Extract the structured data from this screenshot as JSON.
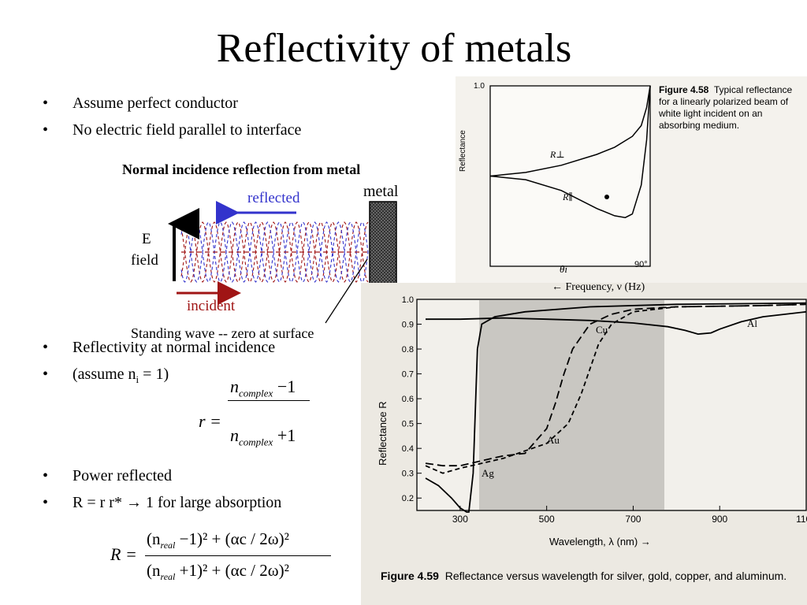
{
  "slide": {
    "title": "Reflectivity of metals",
    "bullets_top": [
      "Assume perfect conductor",
      "No electric field parallel to interface"
    ],
    "bullets_mid": [
      "Reflectivity at normal incidence"
    ],
    "assume_prefix": "(assume n",
    "assume_sub": "i",
    "assume_suffix": " = 1)",
    "bullets_bottom": [
      "Power reflected",
      "R = r r* → 1 for large absorption"
    ]
  },
  "diagram": {
    "heading": "Normal incidence reflection from metal",
    "metal_label": "metal",
    "reflected_label": "reflected",
    "incident_label": "incident",
    "e_field_label_1": "E",
    "e_field_label_2": "field",
    "caption": "Standing wave -- zero at surface"
  },
  "equations": {
    "r_lhs": "r =",
    "r_num": "n",
    "r_num_sub": "complex",
    "r_num_tail": " −1",
    "r_den": "n",
    "r_den_sub": "complex",
    "r_den_tail": " +1",
    "R_lhs": "R =",
    "R_num_open": "(n",
    "R_num_sub": "real",
    "R_num_close": " −1)² + (αc / 2ω)²",
    "R_den_open": "(n",
    "R_den_sub": "real",
    "R_den_close": " +1)² + (αc / 2ω)²"
  },
  "figure_458": {
    "caption_bold": "Figure 4.58",
    "caption_text": "Typical reflectance for a linearly polarized beam of white light incident on an absorbing medium.",
    "y_axis_label": "Reflectance",
    "y_tick": "1.0",
    "x_axis_label": "θi",
    "x_tick": "90°",
    "curve_perp_label": "R⊥",
    "curve_par_label": "R∥",
    "frequency_label": "← Frequency, ν (Hz)"
  },
  "figure_459": {
    "caption_bold": "Figure 4.59",
    "caption_text": "Reflectance versus wavelength for silver, gold, copper, and aluminum."
  },
  "chart_data": [
    {
      "type": "line",
      "title": "",
      "xlabel": "θi",
      "ylabel": "Reflectance",
      "xlim": [
        0,
        90
      ],
      "ylim": [
        0,
        1
      ],
      "x_ticks": [
        "90°"
      ],
      "y_ticks": [
        "1.0"
      ],
      "series": [
        {
          "name": "R⊥",
          "x": [
            0,
            20,
            40,
            60,
            70,
            80,
            85,
            88,
            90
          ],
          "y": [
            0.5,
            0.52,
            0.56,
            0.62,
            0.66,
            0.72,
            0.78,
            0.88,
            1.0
          ]
        },
        {
          "name": "R∥",
          "x": [
            0,
            20,
            40,
            60,
            70,
            76,
            80,
            85,
            88,
            90
          ],
          "y": [
            0.5,
            0.48,
            0.42,
            0.32,
            0.28,
            0.27,
            0.29,
            0.45,
            0.7,
            1.0
          ]
        }
      ]
    },
    {
      "type": "line",
      "title": "",
      "xlabel": "Wavelength, λ (nm) →",
      "ylabel": "Reflectance R",
      "xlim": [
        200,
        1100
      ],
      "ylim": [
        0.15,
        1.0
      ],
      "x_ticks": [
        300,
        500,
        700,
        900,
        1100
      ],
      "y_ticks": [
        0.2,
        0.3,
        0.4,
        0.5,
        0.6,
        0.7,
        0.8,
        0.9,
        1.0
      ],
      "series": [
        {
          "name": "Al",
          "style": "solid",
          "x": [
            220,
            260,
            300,
            400,
            500,
            600,
            700,
            780,
            820,
            850,
            880,
            900,
            950,
            1000,
            1100
          ],
          "y": [
            0.92,
            0.92,
            0.92,
            0.925,
            0.92,
            0.915,
            0.905,
            0.89,
            0.875,
            0.86,
            0.865,
            0.88,
            0.91,
            0.93,
            0.95
          ]
        },
        {
          "name": "Ag",
          "style": "solid",
          "x": [
            220,
            250,
            280,
            300,
            315,
            320,
            330,
            340,
            350,
            380,
            450,
            600,
            800,
            1100
          ],
          "y": [
            0.28,
            0.25,
            0.2,
            0.16,
            0.05,
            0.04,
            0.3,
            0.8,
            0.9,
            0.93,
            0.95,
            0.97,
            0.98,
            0.985
          ]
        },
        {
          "name": "Cu",
          "style": "dashed",
          "x": [
            220,
            260,
            300,
            400,
            500,
            550,
            580,
            600,
            620,
            650,
            700,
            800,
            1000,
            1100
          ],
          "y": [
            0.33,
            0.3,
            0.32,
            0.36,
            0.42,
            0.5,
            0.62,
            0.72,
            0.82,
            0.9,
            0.95,
            0.97,
            0.975,
            0.98
          ]
        },
        {
          "name": "Au",
          "style": "long-dashed",
          "x": [
            220,
            260,
            300,
            350,
            400,
            450,
            500,
            520,
            540,
            560,
            600,
            650,
            700,
            800,
            1000,
            1100
          ],
          "y": [
            0.34,
            0.33,
            0.33,
            0.35,
            0.37,
            0.38,
            0.48,
            0.58,
            0.7,
            0.8,
            0.9,
            0.94,
            0.96,
            0.97,
            0.975,
            0.98
          ]
        }
      ]
    }
  ]
}
